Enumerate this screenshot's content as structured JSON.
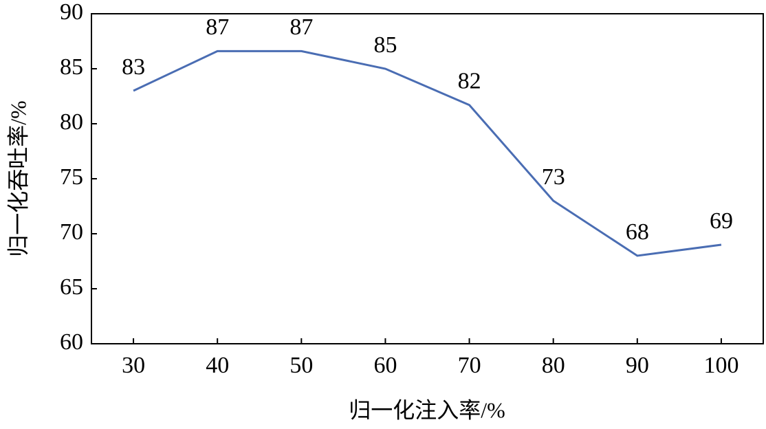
{
  "chart_data": {
    "type": "line",
    "x": [
      30,
      40,
      50,
      60,
      70,
      80,
      90,
      100
    ],
    "series": [
      {
        "color": "#4a6db3",
        "values": [
          83,
          86.6,
          86.6,
          85,
          81.7,
          73,
          68,
          69
        ],
        "value_labels": [
          "83",
          "87",
          "87",
          "85",
          "82",
          "73",
          "68",
          "69"
        ]
      }
    ],
    "xlabel": "归一化注入率/%",
    "ylabel": "归一化吞吐率/%",
    "xlim": [
      25,
      105
    ],
    "xticks": [
      30,
      40,
      50,
      60,
      70,
      80,
      90,
      100
    ],
    "ylim": [
      60,
      90
    ],
    "yticks": [
      60,
      65,
      70,
      75,
      80,
      85,
      90
    ],
    "grid": false
  }
}
